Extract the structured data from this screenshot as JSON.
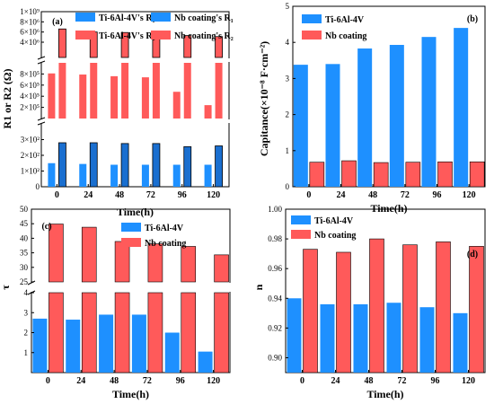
{
  "colors": {
    "blue": "#1e90ff",
    "red": "#ff5a5a",
    "frame": "#000000"
  },
  "chart_data": [
    {
      "panel": "(a)",
      "type": "bar",
      "categories": [
        "0",
        "24",
        "48",
        "72",
        "96",
        "120"
      ],
      "xlabel": "Time(h)",
      "ylabel": "R1 or R2 (Ω)",
      "broken_axis": true,
      "ylim_lower": [
        0,
        400
      ],
      "ylim_mid": [
        0,
        1000000
      ],
      "ylim_upper": [
        1000000,
        10000000
      ],
      "yticks_lower": [
        "0",
        "1×10²",
        "2×10²",
        "3×10²"
      ],
      "yticks_mid": [
        "2×10⁵",
        "4×10⁵",
        "6×10⁵",
        "8×10⁵"
      ],
      "yticks_upper": [
        "4×10⁶",
        "6×10⁶",
        "8×10⁶",
        "1×10⁹"
      ],
      "series": [
        {
          "name": "Ti-6Al-4V's R₁",
          "color": "#1e90ff",
          "values": [
            150,
            145,
            140,
            140,
            140,
            140
          ]
        },
        {
          "name": "Ti-6Al-4V's R₂",
          "color": "#ff5a5a",
          "values": [
            810000,
            790000,
            760000,
            740000,
            480000,
            240000
          ]
        },
        {
          "name": "Nb coating's R₁",
          "color": "#1e90ff",
          "values": [
            280,
            280,
            275,
            275,
            255,
            260
          ]
        },
        {
          "name": "Nb coating's R₂",
          "color": "#ff5a5a",
          "values": [
            6600000,
            6000000,
            5900000,
            5800000,
            5300000,
            5100000
          ]
        }
      ]
    },
    {
      "panel": "(b)",
      "type": "bar",
      "categories": [
        "0",
        "24",
        "48",
        "72",
        "96",
        "120"
      ],
      "xlabel": "Time(h)",
      "ylabel": "Capitance(×10⁻⁸ F·cm⁻²)",
      "ylim": [
        0,
        5
      ],
      "yticks": [
        "0",
        "1",
        "2",
        "3",
        "4",
        "5"
      ],
      "series": [
        {
          "name": "Ti-6Al-4V",
          "color": "#1e90ff",
          "values": [
            3.38,
            3.4,
            3.83,
            3.93,
            4.15,
            4.4
          ]
        },
        {
          "name": "Nb coating",
          "color": "#ff5a5a",
          "values": [
            0.68,
            0.72,
            0.67,
            0.68,
            0.69,
            0.69
          ]
        }
      ]
    },
    {
      "panel": "(c)",
      "type": "bar",
      "categories": [
        "0",
        "24",
        "48",
        "72",
        "96",
        "120"
      ],
      "xlabel": "Time(h)",
      "ylabel": "τ",
      "broken_axis": true,
      "ylim_lower": [
        0,
        4
      ],
      "ylim_upper": [
        25,
        50
      ],
      "yticks_lower": [
        "1",
        "2",
        "3",
        "4"
      ],
      "yticks_upper": [
        "25",
        "30",
        "35",
        "40",
        "45",
        "50"
      ],
      "series": [
        {
          "name": "Ti-6Al-4V",
          "color": "#1e90ff",
          "values": [
            2.7,
            2.65,
            2.9,
            2.9,
            2.0,
            1.05
          ]
        },
        {
          "name": "Nb coating",
          "color": "#ff5a5a",
          "values": [
            44.9,
            43.8,
            38.9,
            38.1,
            37.2,
            34.3
          ]
        }
      ]
    },
    {
      "panel": "(d)",
      "type": "bar",
      "categories": [
        "0",
        "24",
        "48",
        "72",
        "96",
        "120"
      ],
      "xlabel": "Time(h)",
      "ylabel": "n",
      "ylim": [
        0.89,
        1.0
      ],
      "yticks": [
        "0.90",
        "0.92",
        "0.94",
        "0.96",
        "0.98",
        "1.00"
      ],
      "series": [
        {
          "name": "Ti-6Al-4V",
          "color": "#1e90ff",
          "values": [
            0.94,
            0.936,
            0.936,
            0.937,
            0.934,
            0.93
          ]
        },
        {
          "name": "Nb coating",
          "color": "#ff5a5a",
          "values": [
            0.973,
            0.971,
            0.98,
            0.976,
            0.978,
            0.975
          ]
        }
      ]
    }
  ]
}
